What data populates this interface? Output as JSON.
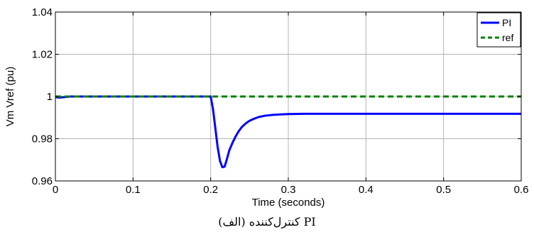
{
  "chart_data": {
    "type": "line",
    "title": "",
    "xlabel": "Time (seconds)",
    "ylabel": "Vm Vref (pu)",
    "xlim": [
      0,
      0.6
    ],
    "ylim": [
      0.96,
      1.04
    ],
    "xticks": [
      0,
      0.1,
      0.2,
      0.3,
      0.4,
      0.5,
      0.6
    ],
    "xtick_labels": [
      "0",
      "0.1",
      "0.2",
      "0.3",
      "0.4",
      "0.5",
      "0.6"
    ],
    "yticks": [
      0.96,
      0.98,
      1.0,
      1.02,
      1.04
    ],
    "ytick_labels": [
      "0.96",
      "0.98",
      "1",
      "1.02",
      "1.04"
    ],
    "grid": true,
    "legend_position": "top-right",
    "series": [
      {
        "name": "PI",
        "color": "#0000ff",
        "style": "solid",
        "x": [
          0,
          0.005,
          0.02,
          0.1,
          0.198,
          0.2,
          0.203,
          0.206,
          0.209,
          0.212,
          0.215,
          0.218,
          0.221,
          0.224,
          0.228,
          0.232,
          0.236,
          0.24,
          0.245,
          0.25,
          0.256,
          0.262,
          0.27,
          0.28,
          0.29,
          0.3,
          0.32,
          0.35,
          0.4,
          0.5,
          0.6
        ],
        "y": [
          0.9997,
          0.9995,
          1.0,
          1.0,
          1.0,
          1.0,
          0.994,
          0.985,
          0.976,
          0.9695,
          0.9665,
          0.9668,
          0.9705,
          0.9745,
          0.978,
          0.981,
          0.9835,
          0.9855,
          0.9872,
          0.9885,
          0.9895,
          0.9903,
          0.9909,
          0.9913,
          0.9915,
          0.9917,
          0.9918,
          0.9918,
          0.9918,
          0.9918,
          0.9918
        ]
      },
      {
        "name": "ref",
        "color": "#008000",
        "style": "dashed",
        "x": [
          0,
          0.6
        ],
        "y": [
          1.0,
          1.0
        ]
      }
    ],
    "caption": "(الف) کنترل‌کننده PI"
  }
}
